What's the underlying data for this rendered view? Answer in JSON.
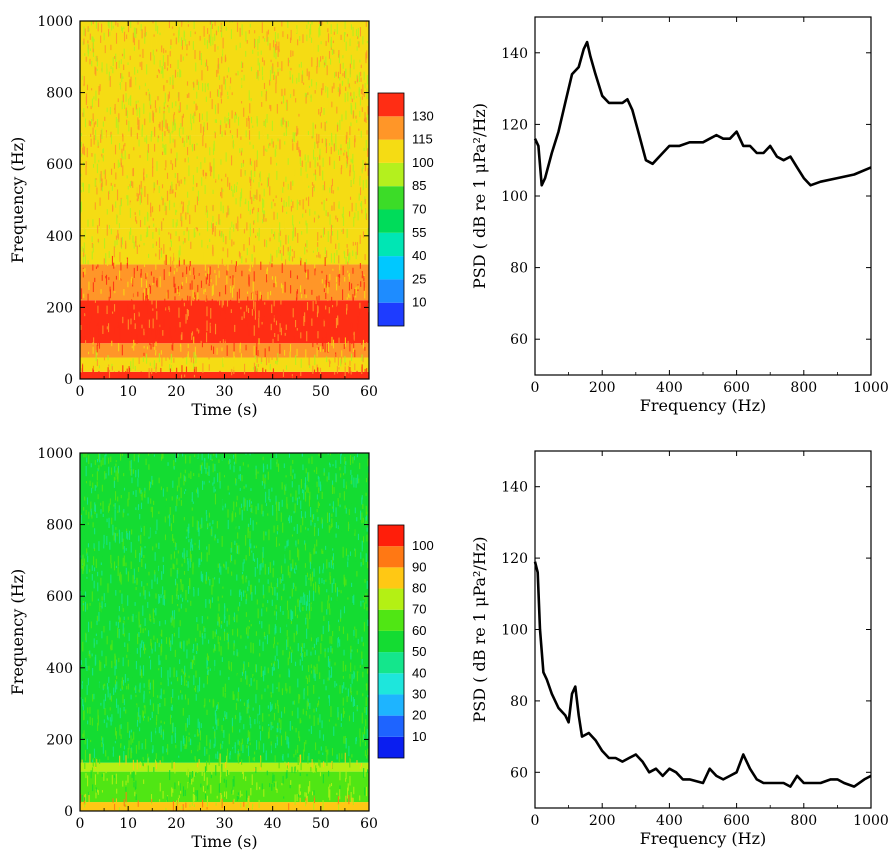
{
  "chart_data": [
    {
      "type": "heatmap",
      "xlabel": "Time (s)",
      "ylabel": "Frequency (Hz)",
      "xlim": [
        0,
        60
      ],
      "ylim": [
        0,
        1000
      ],
      "xticks": [
        "0",
        "10",
        "20",
        "30",
        "40",
        "50",
        "60"
      ],
      "yticks": [
        "0",
        "200",
        "400",
        "600",
        "800",
        "1000"
      ],
      "colorbar": {
        "levels": [
          "10",
          "25",
          "40",
          "55",
          "70",
          "85",
          "100",
          "115",
          "130"
        ],
        "colors": [
          "#1e3cff",
          "#1e8cff",
          "#00c8ff",
          "#00e6b4",
          "#00dc5a",
          "#3cdc28",
          "#b4f01e",
          "#f5dc14",
          "#ff9628",
          "#ff2d14"
        ]
      },
      "bands": [
        {
          "from": 0,
          "to": 20,
          "level": 9
        },
        {
          "from": 20,
          "to": 60,
          "level": 7
        },
        {
          "from": 60,
          "to": 100,
          "level": 8
        },
        {
          "from": 100,
          "to": 220,
          "level": 9
        },
        {
          "from": 220,
          "to": 320,
          "level": 8
        },
        {
          "from": 320,
          "to": 420,
          "level": 7
        },
        {
          "from": 420,
          "to": 680,
          "level": 7
        },
        {
          "from": 680,
          "to": 1000,
          "level": 7
        }
      ]
    },
    {
      "type": "line",
      "xlabel": "Frequency (Hz)",
      "ylabel": "PSD ( dB re 1 μPa²/Hz)",
      "xlim": [
        0,
        1000
      ],
      "ylim": [
        50,
        150
      ],
      "xticks": [
        "0",
        "200",
        "400",
        "600",
        "800",
        "1000"
      ],
      "yticks": [
        "60",
        "80",
        "100",
        "120",
        "140"
      ],
      "series": [
        {
          "x": [
            0,
            10,
            20,
            30,
            50,
            70,
            90,
            110,
            130,
            145,
            155,
            165,
            180,
            200,
            220,
            240,
            260,
            275,
            290,
            310,
            330,
            350,
            380,
            400,
            430,
            460,
            480,
            500,
            520,
            540,
            560,
            580,
            600,
            620,
            640,
            660,
            680,
            700,
            720,
            740,
            760,
            780,
            800,
            820,
            850,
            900,
            950,
            1000
          ],
          "y": [
            116,
            114,
            103,
            105,
            112,
            118,
            126,
            134,
            136,
            141,
            143,
            139,
            134,
            128,
            126,
            126,
            126,
            127,
            124,
            117,
            110,
            109,
            112,
            114,
            114,
            115,
            115,
            115,
            116,
            117,
            116,
            116,
            118,
            114,
            114,
            112,
            112,
            114,
            111,
            110,
            111,
            108,
            105,
            103,
            104,
            105,
            106,
            108
          ]
        }
      ]
    },
    {
      "type": "heatmap",
      "xlabel": "Time (s)",
      "ylabel": "Frequency (Hz)",
      "xlim": [
        0,
        60
      ],
      "ylim": [
        0,
        1000
      ],
      "xticks": [
        "0",
        "10",
        "20",
        "30",
        "40",
        "50",
        "60"
      ],
      "yticks": [
        "0",
        "200",
        "400",
        "600",
        "800",
        "1000"
      ],
      "colorbar": {
        "levels": [
          "10",
          "20",
          "30",
          "40",
          "50",
          "60",
          "70",
          "80",
          "90",
          "100"
        ],
        "colors": [
          "#0a1ef0",
          "#1e64ff",
          "#1eb4ff",
          "#1ee6dc",
          "#14e68c",
          "#14dc32",
          "#50e614",
          "#b4f014",
          "#ffc814",
          "#ff7814",
          "#ff1e0a"
        ]
      },
      "bands": [
        {
          "from": 0,
          "to": 25,
          "level": 8
        },
        {
          "from": 25,
          "to": 110,
          "level": 6
        },
        {
          "from": 110,
          "to": 135,
          "level": 7
        },
        {
          "from": 135,
          "to": 1000,
          "level": 5
        }
      ]
    },
    {
      "type": "line",
      "xlabel": "Frequency (Hz)",
      "ylabel": "PSD ( dB re 1 μPa²/Hz)",
      "xlim": [
        0,
        1000
      ],
      "ylim": [
        50,
        150
      ],
      "xticks": [
        "0",
        "200",
        "400",
        "600",
        "800",
        "1000"
      ],
      "yticks": [
        "60",
        "80",
        "100",
        "120",
        "140"
      ],
      "series": [
        {
          "x": [
            0,
            8,
            15,
            25,
            35,
            50,
            70,
            90,
            100,
            110,
            120,
            130,
            140,
            160,
            180,
            200,
            220,
            240,
            260,
            280,
            300,
            320,
            340,
            360,
            380,
            400,
            420,
            440,
            460,
            500,
            520,
            540,
            560,
            580,
            600,
            620,
            640,
            660,
            680,
            700,
            720,
            740,
            760,
            780,
            800,
            820,
            850,
            880,
            900,
            920,
            950,
            980,
            1000
          ],
          "y": [
            119,
            116,
            100,
            88,
            86,
            82,
            78,
            76,
            74,
            82,
            84,
            76,
            70,
            71,
            69,
            66,
            64,
            64,
            63,
            64,
            65,
            63,
            60,
            61,
            59,
            61,
            60,
            58,
            58,
            57,
            61,
            59,
            58,
            59,
            60,
            65,
            61,
            58,
            57,
            57,
            57,
            57,
            56,
            59,
            57,
            57,
            57,
            58,
            58,
            57,
            56,
            58,
            59
          ]
        }
      ]
    }
  ]
}
